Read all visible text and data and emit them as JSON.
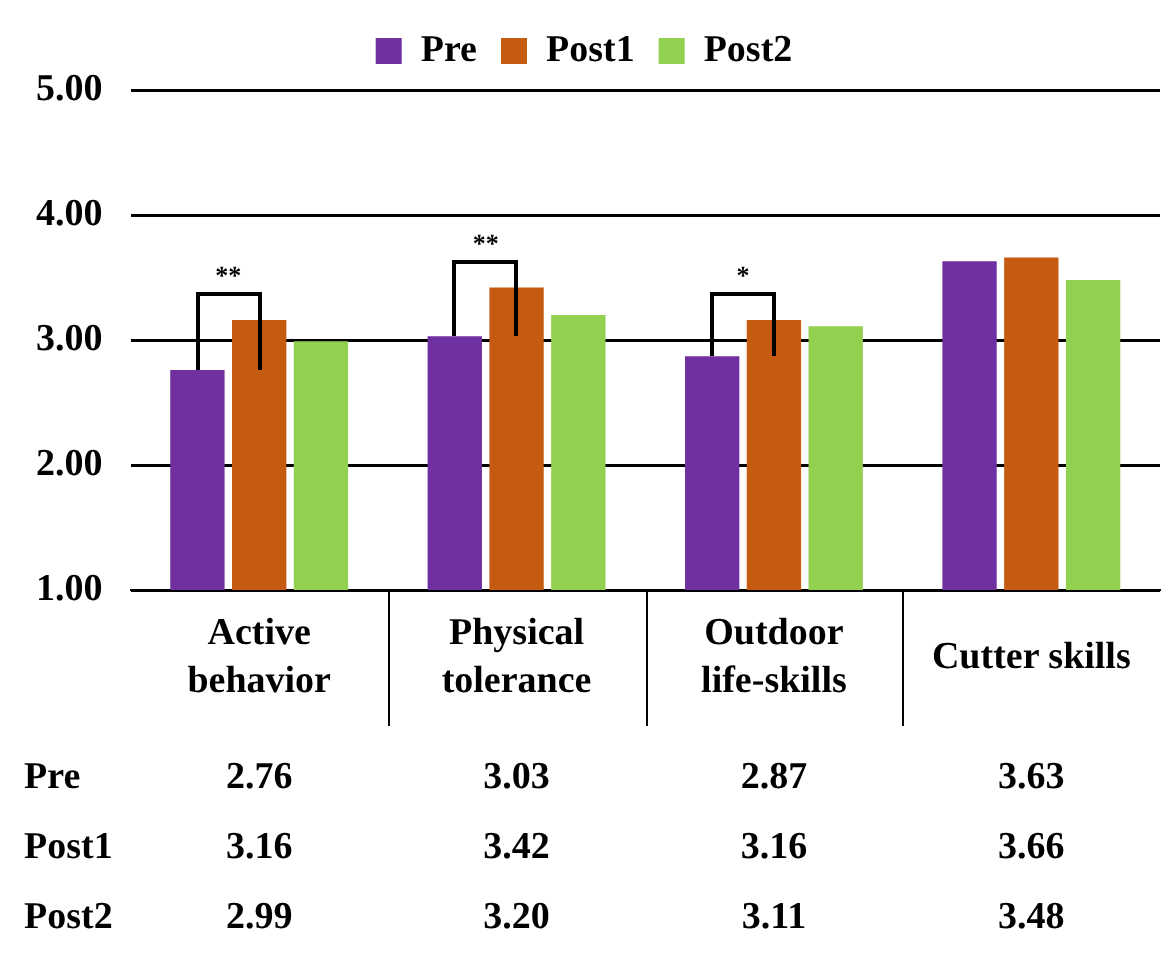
{
  "chart_data": {
    "type": "bar",
    "categories": [
      "Active behavior",
      "Physical tolerance",
      "Outdoor life-skills",
      "Cutter skills"
    ],
    "series": [
      {
        "name": "Pre",
        "color": "#7030a0",
        "values": [
          2.76,
          3.03,
          2.87,
          3.63
        ],
        "value_labels": [
          "2.76",
          "3.03",
          "2.87",
          "3.63"
        ]
      },
      {
        "name": "Post1",
        "color": "#c55a11",
        "values": [
          3.16,
          3.42,
          3.16,
          3.66
        ],
        "value_labels": [
          "3.16",
          "3.42",
          "3.16",
          "3.66"
        ]
      },
      {
        "name": "Post2",
        "color": "#92d050",
        "values": [
          2.99,
          3.2,
          3.11,
          3.48
        ],
        "value_labels": [
          "2.99",
          "3.20",
          "3.11",
          "3.48"
        ]
      }
    ],
    "ylim": [
      1,
      5
    ],
    "yticks": [
      {
        "value": 1,
        "label": "1.00"
      },
      {
        "value": 2,
        "label": "2.00"
      },
      {
        "value": 3,
        "label": "3.00"
      },
      {
        "value": 4,
        "label": "4.00"
      },
      {
        "value": 5,
        "label": "5.00"
      }
    ],
    "grid": "y",
    "legend": "top",
    "annotations": [
      "**",
      "**",
      "*"
    ]
  }
}
